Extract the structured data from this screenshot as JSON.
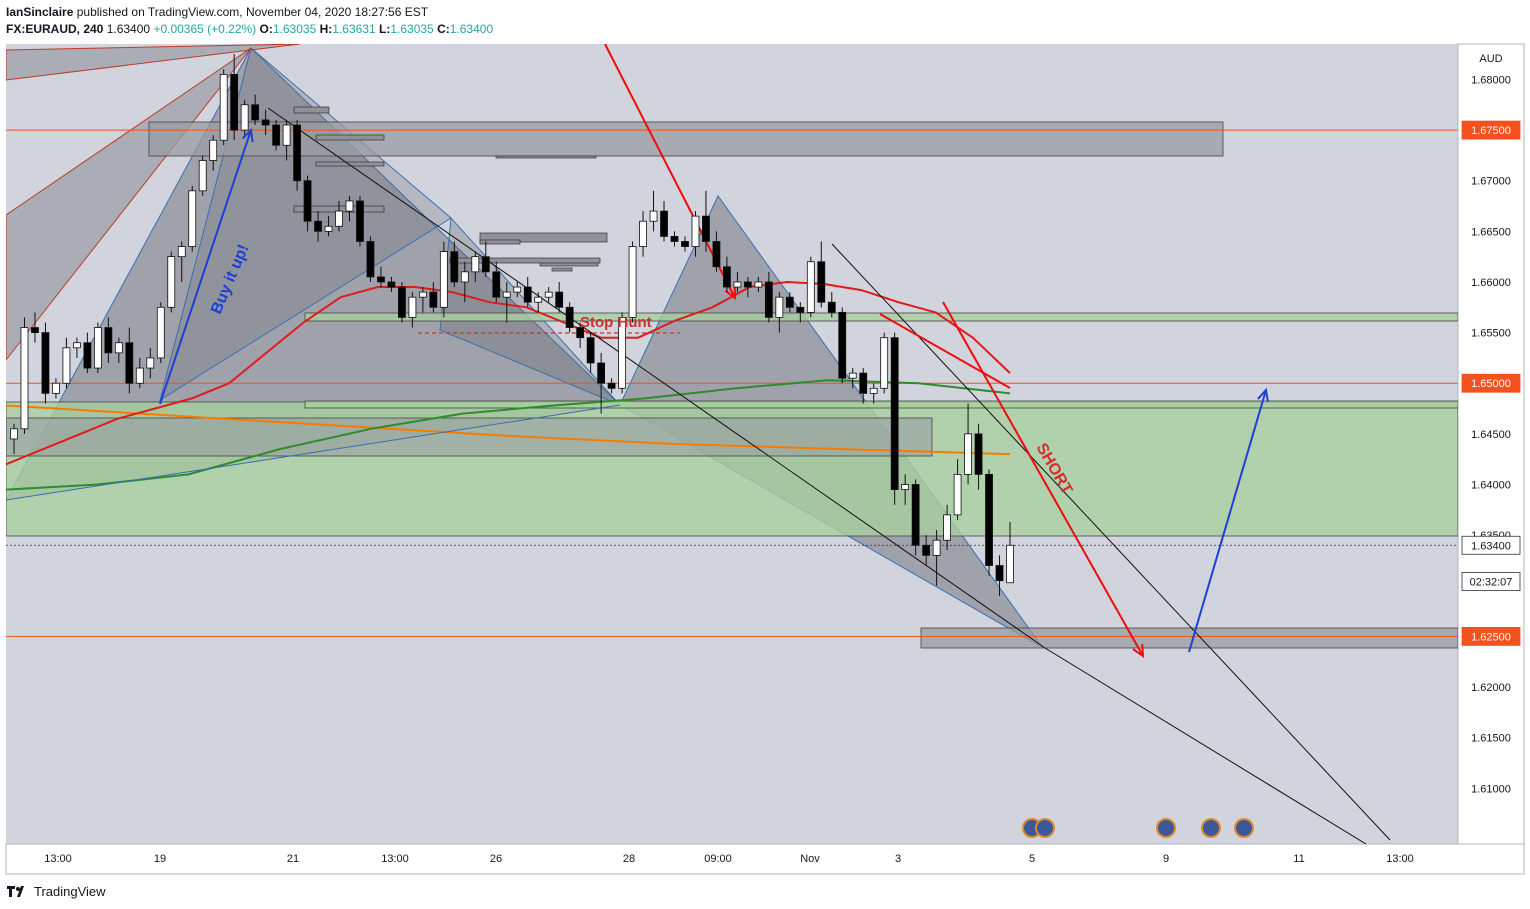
{
  "header": {
    "author": "IanSinclaire",
    "published": "published on TradingView.com, November 04, 2020 18:27:56 EST",
    "symbol": "FX:EURAUD, 240",
    "last": "1.63400",
    "change": "+0.00365 (+0.22%)",
    "o_label": "O:",
    "o": "1.63035",
    "h_label": "H:",
    "h": "1.63631",
    "l_label": "L:",
    "l": "1.63035",
    "c_label": "C:",
    "c": "1.63400"
  },
  "footer": {
    "brand": "TradingView"
  },
  "colors": {
    "up": "#ffffff",
    "down": "#000000",
    "ma_red": "#e01b1b",
    "ma_orange": "#f57c00",
    "ma_green": "#2e8b2e",
    "zone_green": "#a8cf9f",
    "zone_gray": "#9a9ca3",
    "level_line": "#f4511e",
    "arrow_red": "#f20a0a",
    "arrow_blue": "#1f3fd6",
    "bg": "#d1d4dc"
  },
  "chart_data": {
    "type": "candlestick",
    "currency": "AUD",
    "ylim": [
      1.6045,
      1.6835
    ],
    "y_ticks": [
      "1.68000",
      "1.67500",
      "1.67000",
      "1.66500",
      "1.66000",
      "1.65500",
      "1.65000",
      "1.64500",
      "1.64000",
      "1.63500",
      "1.63000",
      "1.62500",
      "1.62000",
      "1.61500",
      "1.61000"
    ],
    "x_ticks": [
      "13:00",
      "19",
      "21",
      "13:00",
      "26",
      "28",
      "09:00",
      "Nov",
      "3",
      "5",
      "9",
      "11",
      "13:00"
    ],
    "price_labels": [
      {
        "text": "1.67500",
        "value": 1.675,
        "kind": "level"
      },
      {
        "text": "1.65000",
        "value": 1.65,
        "kind": "level"
      },
      {
        "text": "1.62500",
        "value": 1.625,
        "kind": "level"
      },
      {
        "text": "1.63400",
        "value": 1.634,
        "kind": "last"
      },
      {
        "text": "02:32:07",
        "value": 1.632,
        "kind": "countdown"
      }
    ],
    "candles": [
      [
        1.6445,
        1.646,
        1.643,
        1.6455
      ],
      [
        1.6455,
        1.6565,
        1.645,
        1.6555
      ],
      [
        1.6555,
        1.657,
        1.654,
        1.655
      ],
      [
        1.655,
        1.656,
        1.648,
        1.649
      ],
      [
        1.649,
        1.6505,
        1.6485,
        1.65
      ],
      [
        1.65,
        1.6545,
        1.6495,
        1.6535
      ],
      [
        1.6535,
        1.6545,
        1.6525,
        1.654
      ],
      [
        1.654,
        1.655,
        1.651,
        1.6515
      ],
      [
        1.6515,
        1.656,
        1.651,
        1.6555
      ],
      [
        1.6555,
        1.6565,
        1.652,
        1.653
      ],
      [
        1.653,
        1.6545,
        1.652,
        1.654
      ],
      [
        1.654,
        1.6555,
        1.649,
        1.65
      ],
      [
        1.65,
        1.6525,
        1.6495,
        1.6515
      ],
      [
        1.6515,
        1.6535,
        1.6505,
        1.6525
      ],
      [
        1.6525,
        1.658,
        1.652,
        1.6575
      ],
      [
        1.6575,
        1.663,
        1.657,
        1.6625
      ],
      [
        1.6625,
        1.664,
        1.66,
        1.6635
      ],
      [
        1.6635,
        1.6695,
        1.663,
        1.669
      ],
      [
        1.669,
        1.6725,
        1.6685,
        1.672
      ],
      [
        1.672,
        1.6745,
        1.671,
        1.674
      ],
      [
        1.674,
        1.681,
        1.6735,
        1.6805
      ],
      [
        1.6805,
        1.6825,
        1.674,
        1.675
      ],
      [
        1.675,
        1.678,
        1.6745,
        1.6775
      ],
      [
        1.6775,
        1.6785,
        1.6755,
        1.676
      ],
      [
        1.676,
        1.677,
        1.6745,
        1.6755
      ],
      [
        1.6755,
        1.676,
        1.673,
        1.6735
      ],
      [
        1.6735,
        1.676,
        1.672,
        1.6755
      ],
      [
        1.6755,
        1.676,
        1.669,
        1.67
      ],
      [
        1.67,
        1.6705,
        1.665,
        1.666
      ],
      [
        1.666,
        1.667,
        1.664,
        1.665
      ],
      [
        1.665,
        1.6665,
        1.6645,
        1.6655
      ],
      [
        1.6655,
        1.668,
        1.665,
        1.667
      ],
      [
        1.667,
        1.6685,
        1.666,
        1.668
      ],
      [
        1.668,
        1.6685,
        1.6635,
        1.664
      ],
      [
        1.664,
        1.6645,
        1.66,
        1.6605
      ],
      [
        1.6605,
        1.6615,
        1.6595,
        1.66
      ],
      [
        1.66,
        1.6605,
        1.659,
        1.6595
      ],
      [
        1.6595,
        1.66,
        1.656,
        1.6565
      ],
      [
        1.6565,
        1.659,
        1.6555,
        1.6585
      ],
      [
        1.6585,
        1.6595,
        1.657,
        1.659
      ],
      [
        1.659,
        1.66,
        1.657,
        1.6575
      ],
      [
        1.6575,
        1.664,
        1.6565,
        1.663
      ],
      [
        1.663,
        1.664,
        1.6595,
        1.66
      ],
      [
        1.66,
        1.662,
        1.658,
        1.661
      ],
      [
        1.661,
        1.663,
        1.66,
        1.6625
      ],
      [
        1.6625,
        1.664,
        1.6605,
        1.661
      ],
      [
        1.661,
        1.662,
        1.658,
        1.6585
      ],
      [
        1.6585,
        1.66,
        1.656,
        1.659
      ],
      [
        1.659,
        1.66,
        1.6585,
        1.6595
      ],
      [
        1.6595,
        1.6605,
        1.6575,
        1.658
      ],
      [
        1.658,
        1.659,
        1.657,
        1.6585
      ],
      [
        1.6585,
        1.6595,
        1.658,
        1.659
      ],
      [
        1.659,
        1.66,
        1.657,
        1.6575
      ],
      [
        1.6575,
        1.658,
        1.655,
        1.6555
      ],
      [
        1.6555,
        1.656,
        1.6535,
        1.6545
      ],
      [
        1.6545,
        1.655,
        1.651,
        1.652
      ],
      [
        1.652,
        1.653,
        1.647,
        1.65
      ],
      [
        1.65,
        1.6505,
        1.649,
        1.6495
      ],
      [
        1.6495,
        1.657,
        1.649,
        1.6565
      ],
      [
        1.6565,
        1.664,
        1.656,
        1.6635
      ],
      [
        1.6635,
        1.667,
        1.6625,
        1.666
      ],
      [
        1.666,
        1.669,
        1.665,
        1.667
      ],
      [
        1.667,
        1.668,
        1.664,
        1.6645
      ],
      [
        1.6645,
        1.665,
        1.6635,
        1.664
      ],
      [
        1.664,
        1.6645,
        1.663,
        1.6635
      ],
      [
        1.6635,
        1.667,
        1.6625,
        1.6665
      ],
      [
        1.6665,
        1.669,
        1.663,
        1.664
      ],
      [
        1.664,
        1.665,
        1.661,
        1.6615
      ],
      [
        1.6615,
        1.6625,
        1.659,
        1.6595
      ],
      [
        1.6595,
        1.661,
        1.659,
        1.66
      ],
      [
        1.66,
        1.6605,
        1.6585,
        1.6595
      ],
      [
        1.6595,
        1.6605,
        1.659,
        1.66
      ],
      [
        1.66,
        1.661,
        1.656,
        1.6565
      ],
      [
        1.6565,
        1.659,
        1.655,
        1.6585
      ],
      [
        1.6585,
        1.659,
        1.657,
        1.6575
      ],
      [
        1.6575,
        1.658,
        1.656,
        1.657
      ],
      [
        1.657,
        1.6625,
        1.6565,
        1.662
      ],
      [
        1.662,
        1.664,
        1.6575,
        1.658
      ],
      [
        1.658,
        1.659,
        1.6565,
        1.657
      ],
      [
        1.657,
        1.6575,
        1.65,
        1.6505
      ],
      [
        1.6505,
        1.6515,
        1.6495,
        1.651
      ],
      [
        1.651,
        1.6515,
        1.648,
        1.649
      ],
      [
        1.649,
        1.65,
        1.648,
        1.6495
      ],
      [
        1.6495,
        1.655,
        1.649,
        1.6545
      ],
      [
        1.6545,
        1.655,
        1.638,
        1.6395
      ],
      [
        1.6395,
        1.641,
        1.638,
        1.64
      ],
      [
        1.64,
        1.6405,
        1.633,
        1.634
      ],
      [
        1.634,
        1.635,
        1.632,
        1.633
      ],
      [
        1.633,
        1.6355,
        1.63,
        1.6345
      ],
      [
        1.6345,
        1.638,
        1.6335,
        1.637
      ],
      [
        1.637,
        1.6425,
        1.6365,
        1.641
      ],
      [
        1.641,
        1.648,
        1.64,
        1.645
      ],
      [
        1.645,
        1.646,
        1.6395,
        1.641
      ],
      [
        1.641,
        1.6415,
        1.631,
        1.632
      ],
      [
        1.632,
        1.633,
        1.629,
        1.6305
      ],
      [
        1.6303,
        1.6363,
        1.6303,
        1.634
      ]
    ],
    "ma_red": [
      1.642,
      1.6435,
      1.645,
      1.6465,
      1.6475,
      1.6485,
      1.65,
      1.653,
      1.656,
      1.6585,
      1.6595,
      1.6595,
      1.659,
      1.658,
      1.6575,
      1.656,
      1.6545,
      1.6545,
      1.6562,
      1.6575,
      1.6595,
      1.66,
      1.6598,
      1.6592,
      1.658,
      1.657,
      1.6545,
      1.651
    ],
    "ma_orange": [
      1.6478,
      1.6468,
      1.6458,
      1.6448,
      1.644,
      1.6435,
      1.643
    ],
    "ma_green": [
      1.6395,
      1.64,
      1.641,
      1.6435,
      1.6455,
      1.647,
      1.6478,
      1.6485,
      1.6495,
      1.6503,
      1.65,
      1.649
    ],
    "annotations": [
      "Buy it up!",
      "Stop Hunt",
      "SHORT"
    ]
  }
}
